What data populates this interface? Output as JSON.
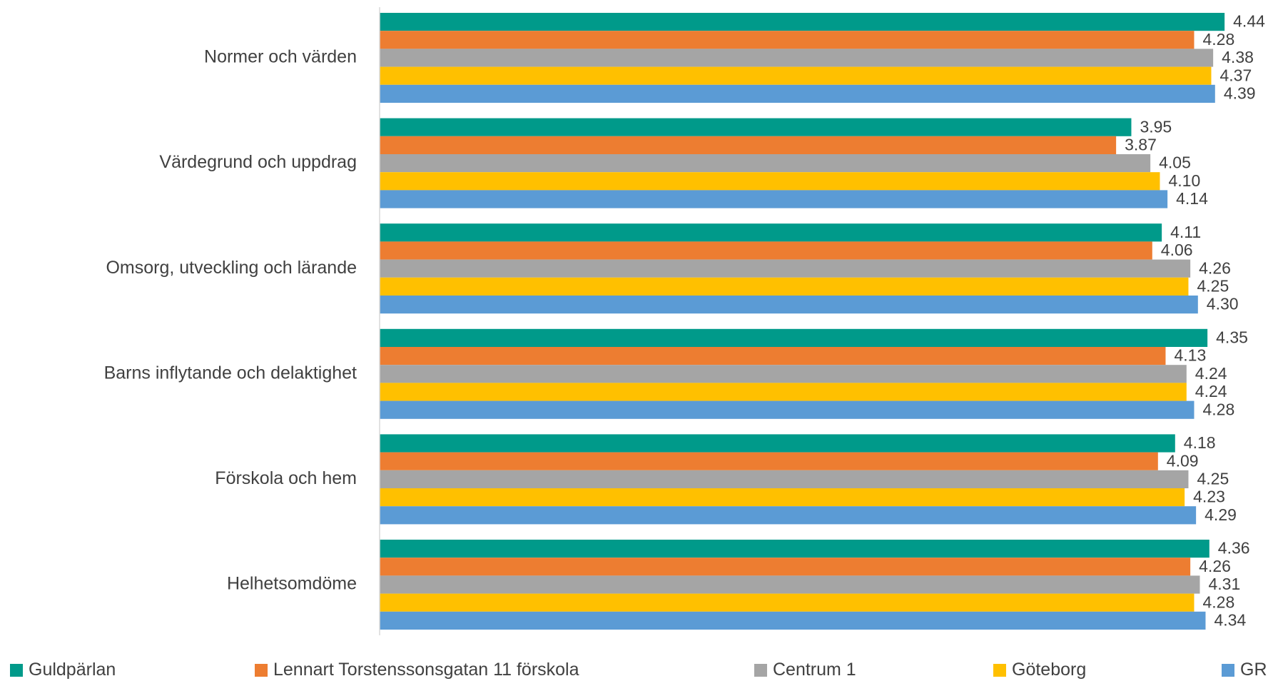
{
  "chart_data": {
    "type": "bar",
    "orientation": "horizontal",
    "categories": [
      "Normer och värden",
      "Värdegrund och uppdrag",
      "Omsorg, utveckling och lärande",
      "Barns inflytande och delaktighet",
      "Förskola och hem",
      "Helhetsomdöme"
    ],
    "series": [
      {
        "name": "Guldpärlan",
        "color": "#009A8A",
        "values": [
          4.44,
          3.95,
          4.11,
          4.35,
          4.18,
          4.36
        ]
      },
      {
        "name": "Lennart Torstenssonsgatan 11 förskola",
        "color": "#ED7D31",
        "values": [
          4.28,
          3.87,
          4.06,
          4.13,
          4.09,
          4.26
        ]
      },
      {
        "name": "Centrum 1",
        "color": "#A5A5A5",
        "values": [
          4.38,
          4.05,
          4.26,
          4.24,
          4.25,
          4.31
        ]
      },
      {
        "name": "Göteborg",
        "color": "#FFC000",
        "values": [
          4.37,
          4.1,
          4.25,
          4.24,
          4.23,
          4.28
        ]
      },
      {
        "name": "GR",
        "color": "#5B9BD5",
        "values": [
          4.39,
          4.14,
          4.3,
          4.28,
          4.29,
          4.34
        ]
      }
    ],
    "value_format_decimals": 2,
    "legend_position": "bottom",
    "grid": false
  }
}
